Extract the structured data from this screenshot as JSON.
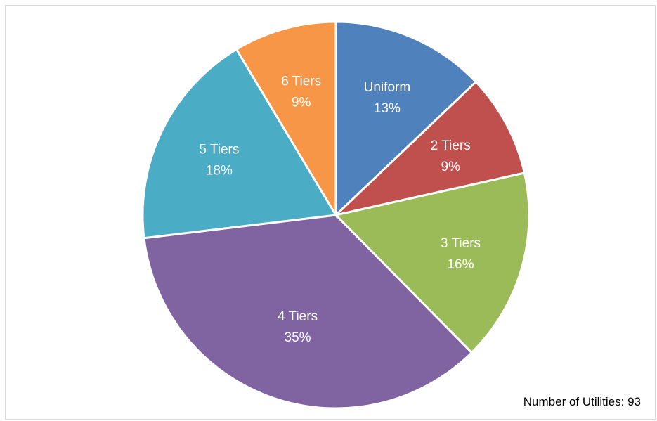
{
  "chart_data": {
    "type": "pie",
    "slices": [
      {
        "label": "Uniform",
        "percent_label": "13%",
        "value": 12.9,
        "color": "#4f81bd"
      },
      {
        "label": "2 Tiers",
        "percent_label": "9%",
        "value": 8.6,
        "color": "#c0504d"
      },
      {
        "label": "3 Tiers",
        "percent_label": "16%",
        "value": 16.1,
        "color": "#9bbb59"
      },
      {
        "label": "4 Tiers",
        "percent_label": "35%",
        "value": 35.5,
        "color": "#8064a2"
      },
      {
        "label": "5 Tiers",
        "percent_label": "18%",
        "value": 18.3,
        "color": "#4bacc6"
      },
      {
        "label": "6 Tiers",
        "percent_label": "9%",
        "value": 8.6,
        "color": "#f79646"
      }
    ],
    "start_angle": "top, clockwise",
    "annotation": "Number of Utilities: 93"
  }
}
